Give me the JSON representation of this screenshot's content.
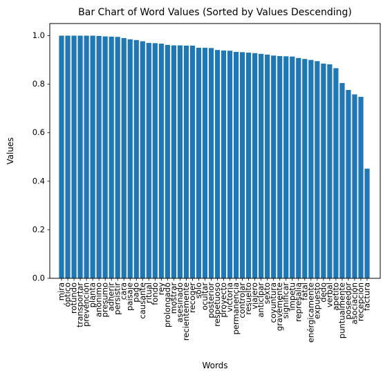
{
  "chart_data": {
    "type": "bar",
    "title": "Bar Chart of Word Values (Sorted by Values Descending)",
    "xlabel": "Words",
    "ylabel": "Values",
    "ylim": [
      0,
      1.05
    ],
    "yticks": [
      "0.0",
      "0.2",
      "0.4",
      "0.6",
      "0.8",
      "1.0"
    ],
    "bar_color": "#1f77b4",
    "grid": false,
    "categories": [
      "mira",
      "óptico",
      "rotundo",
      "transportar",
      "prevención",
      "planta",
      "anónimo",
      "presumo",
      "adherir",
      "persistir",
      "cara",
      "paisaje",
      "pago",
      "causante",
      "ritual",
      "fondo",
      "rey",
      "prolongado",
      "mostrar",
      "asesinado",
      "recientemente",
      "recoger",
      "solo",
      "ocultar",
      "posterior",
      "respetuoso",
      "proyecto",
      "victoria",
      "permanencia",
      "controlar",
      "resuelto",
      "viajero",
      "anticipar",
      "sexto",
      "coyuntura",
      "gravemente",
      "significar",
      "impetu",
      "represalia",
      "fatal",
      "enérgicamente",
      "expuesto",
      "dedo",
      "verbal",
      "apetito",
      "puntualmente",
      "poseedor",
      "asociación",
      "recepción",
      "factura"
    ],
    "values": [
      1.0,
      1.0,
      1.0,
      1.0,
      1.0,
      1.0,
      0.999,
      0.997,
      0.996,
      0.995,
      0.99,
      0.985,
      0.982,
      0.977,
      0.97,
      0.969,
      0.967,
      0.962,
      0.96,
      0.96,
      0.959,
      0.959,
      0.95,
      0.95,
      0.949,
      0.941,
      0.939,
      0.938,
      0.933,
      0.932,
      0.93,
      0.928,
      0.925,
      0.922,
      0.918,
      0.916,
      0.915,
      0.914,
      0.908,
      0.904,
      0.9,
      0.895,
      0.885,
      0.882,
      0.866,
      0.805,
      0.776,
      0.758,
      0.748,
      0.452
    ]
  }
}
